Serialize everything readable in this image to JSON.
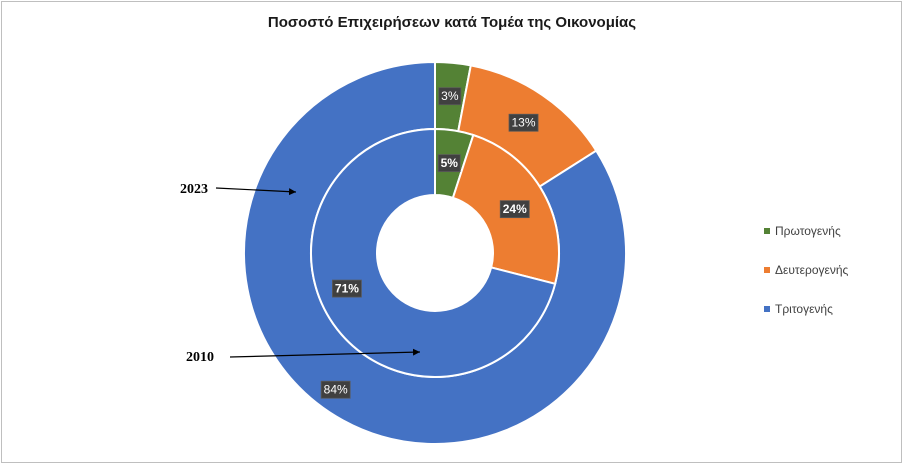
{
  "chart_data": {
    "type": "pie",
    "subtype": "nested-donut",
    "title": "Ποσοστό Επιχειρήσεων κατά Τομέα της Οικονομίας",
    "categories": [
      "Πρωτογενής",
      "Δευτερογενής",
      "Τριτογενής"
    ],
    "colors": [
      "#548235",
      "#ed7d31",
      "#4472c4"
    ],
    "series": [
      {
        "name": "2023",
        "ring": "outer",
        "values": [
          3,
          13,
          84
        ],
        "labels": [
          "3%",
          "13%",
          "84%"
        ]
      },
      {
        "name": "2010",
        "ring": "inner",
        "values": [
          5,
          24,
          71
        ],
        "labels": [
          "5%",
          "24%",
          "71%"
        ]
      }
    ],
    "legend": {
      "position": "right",
      "entries": [
        "Πρωτογενής",
        "Δευτερογενής",
        "Τριτογενής"
      ]
    },
    "annotations": [
      "2023",
      "2010"
    ]
  }
}
